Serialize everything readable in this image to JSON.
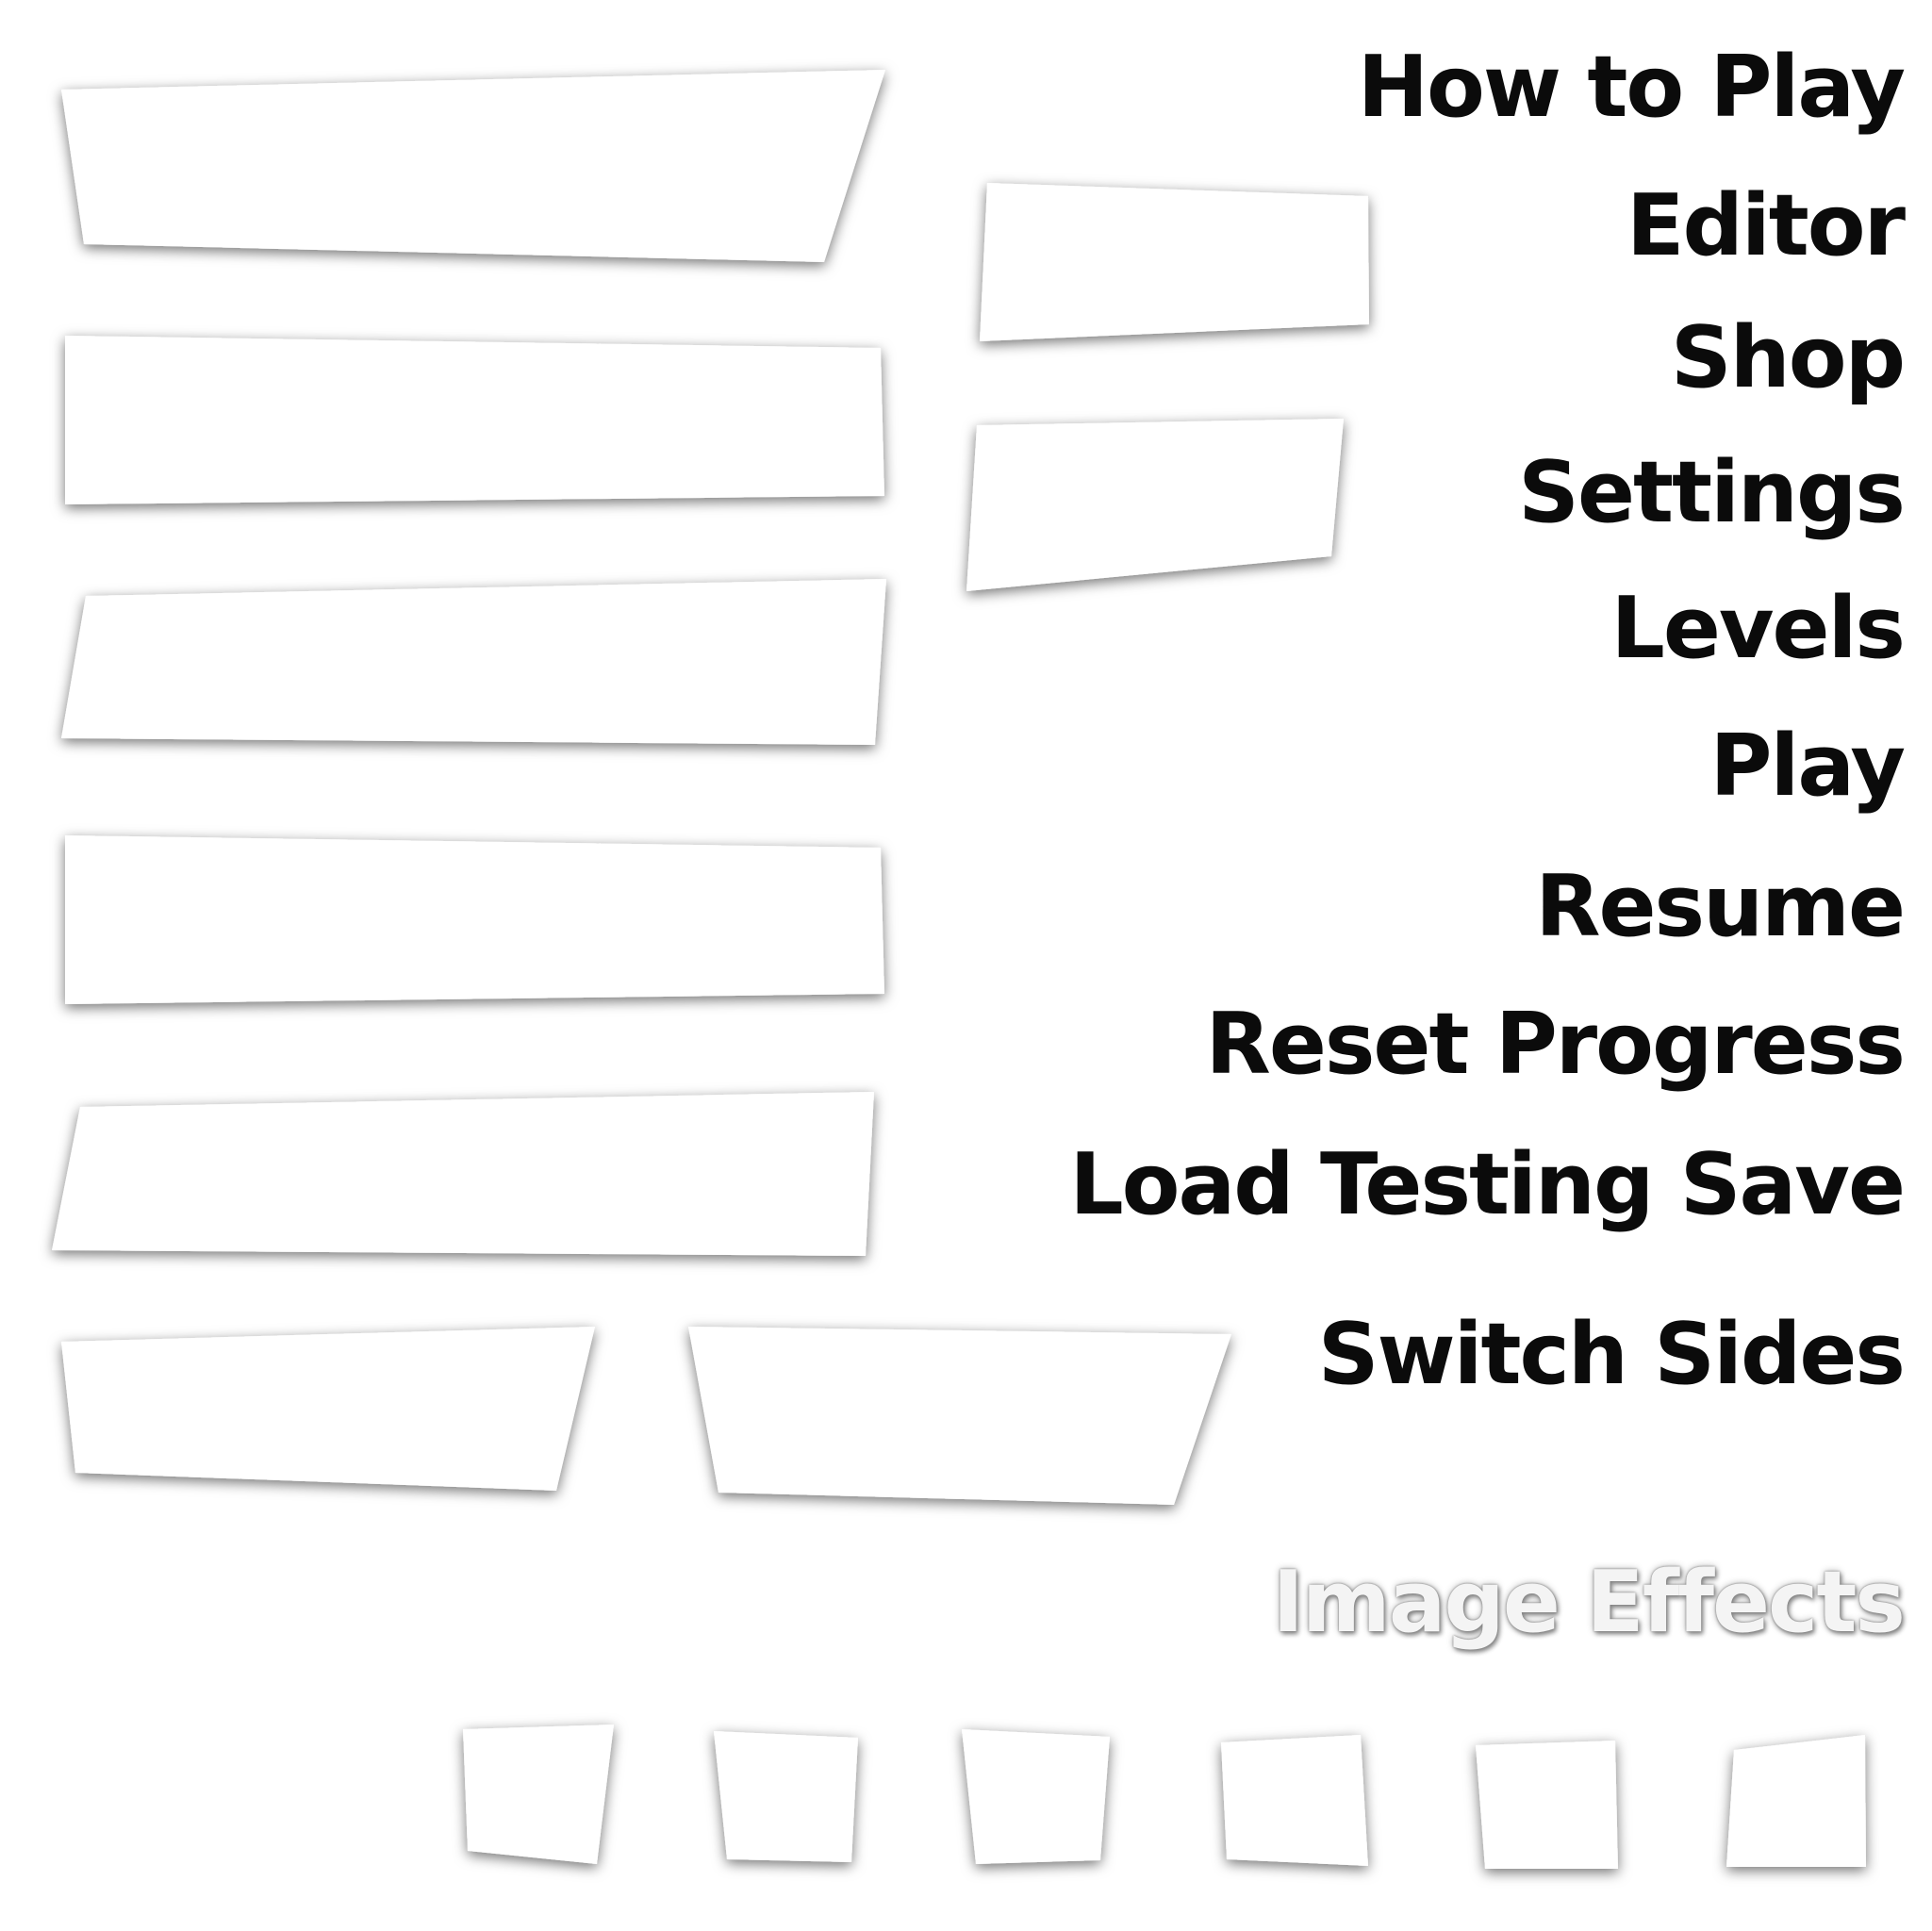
{
  "labels": {
    "how_to_play": "How to Play",
    "editor": "Editor",
    "shop": "Shop",
    "settings": "Settings",
    "levels": "Levels",
    "play": "Play",
    "resume": "Resume",
    "reset_progress": "Reset Progress",
    "load_testing_save": "Load Testing Save",
    "switch_sides": "Switch Sides",
    "image_effects": "Image Effects"
  },
  "colors": {
    "background": "#ffffff",
    "panel": "#ffffff",
    "panel_shadow": "#000000",
    "label_text": "#0b0b0b",
    "muted_label_text": "#f4f4f4"
  }
}
